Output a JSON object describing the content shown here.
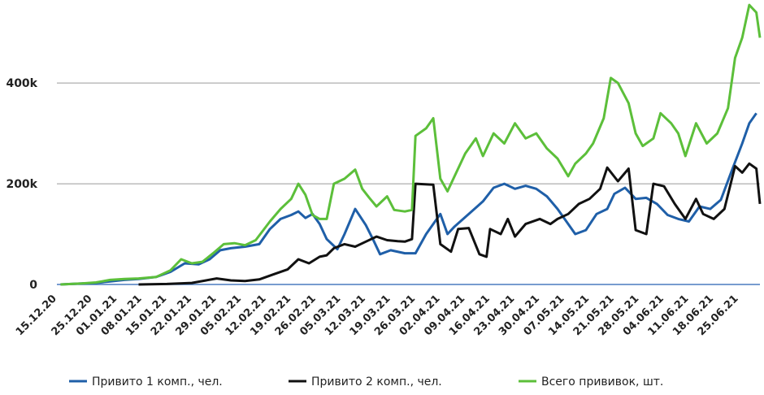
{
  "chart_data": {
    "type": "line",
    "title": "",
    "xlabel": "",
    "ylabel": "",
    "ylim": [
      0,
      560000
    ],
    "y_ticks": [
      0,
      200000,
      400000
    ],
    "y_tick_labels": [
      "0",
      "200k",
      "400k"
    ],
    "x_range": [
      "15.12.20",
      "01.07.21"
    ],
    "grid": "horizontal",
    "legend_position": "bottom",
    "categories": [
      "15.12.20",
      "25.12.20",
      "01.01.21",
      "08.01.21",
      "15.01.21",
      "22.01.21",
      "29.01.21",
      "05.02.21",
      "12.02.21",
      "19.02.21",
      "26.02.21",
      "05.03.21",
      "12.03.21",
      "19.03.21",
      "26.03.21",
      "02.04.21",
      "09.04.21",
      "16.04.21",
      "23.04.21",
      "30.04.21",
      "07.05.21",
      "14.05.21",
      "21.05.21",
      "28.05.21",
      "04.06.21",
      "11.06.21",
      "18.06.21",
      "25.06.21"
    ],
    "series": [
      {
        "name": "Привито 1 комп., чел.",
        "color": "#1f5fa8",
        "points": [
          [
            "16.12.20",
            0
          ],
          [
            "22.12.20",
            2000
          ],
          [
            "26.12.20",
            3000
          ],
          [
            "30.12.20",
            6000
          ],
          [
            "03.01.21",
            9000
          ],
          [
            "07.01.21",
            11000
          ],
          [
            "12.01.21",
            15000
          ],
          [
            "16.01.21",
            25000
          ],
          [
            "20.01.21",
            42000
          ],
          [
            "24.01.21",
            40000
          ],
          [
            "27.01.21",
            50000
          ],
          [
            "30.01.21",
            68000
          ],
          [
            "02.02.21",
            72000
          ],
          [
            "06.02.21",
            75000
          ],
          [
            "10.02.21",
            80000
          ],
          [
            "13.02.21",
            110000
          ],
          [
            "16.02.21",
            130000
          ],
          [
            "19.02.21",
            138000
          ],
          [
            "21.02.21",
            145000
          ],
          [
            "23.02.21",
            132000
          ],
          [
            "25.02.21",
            140000
          ],
          [
            "27.02.21",
            120000
          ],
          [
            "01.03.21",
            90000
          ],
          [
            "04.03.21",
            70000
          ],
          [
            "06.03.21",
            100000
          ],
          [
            "09.03.21",
            150000
          ],
          [
            "12.03.21",
            118000
          ],
          [
            "14.03.21",
            90000
          ],
          [
            "16.03.21",
            60000
          ],
          [
            "19.03.21",
            68000
          ],
          [
            "23.03.21",
            62000
          ],
          [
            "26.03.21",
            62000
          ],
          [
            "29.03.21",
            100000
          ],
          [
            "02.04.21",
            140000
          ],
          [
            "04.04.21",
            100000
          ],
          [
            "06.04.21",
            115000
          ],
          [
            "10.04.21",
            140000
          ],
          [
            "14.04.21",
            165000
          ],
          [
            "17.04.21",
            192000
          ],
          [
            "20.04.21",
            200000
          ],
          [
            "23.04.21",
            190000
          ],
          [
            "26.04.21",
            196000
          ],
          [
            "29.04.21",
            190000
          ],
          [
            "02.05.21",
            175000
          ],
          [
            "05.05.21",
            150000
          ],
          [
            "08.05.21",
            120000
          ],
          [
            "10.05.21",
            100000
          ],
          [
            "13.05.21",
            108000
          ],
          [
            "16.05.21",
            140000
          ],
          [
            "19.05.21",
            150000
          ],
          [
            "21.05.21",
            180000
          ],
          [
            "24.05.21",
            192000
          ],
          [
            "27.05.21",
            170000
          ],
          [
            "30.05.21",
            172000
          ],
          [
            "02.06.21",
            160000
          ],
          [
            "05.06.21",
            138000
          ],
          [
            "08.06.21",
            130000
          ],
          [
            "11.06.21",
            125000
          ],
          [
            "14.06.21",
            155000
          ],
          [
            "17.06.21",
            150000
          ],
          [
            "20.06.21",
            168000
          ],
          [
            "23.06.21",
            225000
          ],
          [
            "26.06.21",
            280000
          ],
          [
            "28.06.21",
            320000
          ],
          [
            "30.06.21",
            340000
          ]
        ]
      },
      {
        "name": "Привито 2 комп., чел.",
        "color": "#111111",
        "points": [
          [
            "07.01.21",
            0
          ],
          [
            "15.01.21",
            1000
          ],
          [
            "22.01.21",
            3000
          ],
          [
            "26.01.21",
            8000
          ],
          [
            "29.01.21",
            12000
          ],
          [
            "02.02.21",
            8000
          ],
          [
            "06.02.21",
            7000
          ],
          [
            "10.02.21",
            10000
          ],
          [
            "14.02.21",
            20000
          ],
          [
            "18.02.21",
            30000
          ],
          [
            "21.02.21",
            50000
          ],
          [
            "24.02.21",
            42000
          ],
          [
            "27.02.21",
            55000
          ],
          [
            "01.03.21",
            58000
          ],
          [
            "03.03.21",
            72000
          ],
          [
            "06.03.21",
            80000
          ],
          [
            "09.03.21",
            75000
          ],
          [
            "12.03.21",
            85000
          ],
          [
            "15.03.21",
            95000
          ],
          [
            "18.03.21",
            88000
          ],
          [
            "21.03.21",
            86000
          ],
          [
            "23.03.21",
            85000
          ],
          [
            "25.03.21",
            90000
          ],
          [
            "26.03.21",
            200000
          ],
          [
            "31.03.21",
            198000
          ],
          [
            "02.04.21",
            80000
          ],
          [
            "05.04.21",
            65000
          ],
          [
            "07.04.21",
            110000
          ],
          [
            "10.04.21",
            112000
          ],
          [
            "13.04.21",
            60000
          ],
          [
            "15.04.21",
            55000
          ],
          [
            "16.04.21",
            110000
          ],
          [
            "19.04.21",
            100000
          ],
          [
            "21.04.21",
            130000
          ],
          [
            "23.04.21",
            95000
          ],
          [
            "26.04.21",
            120000
          ],
          [
            "30.04.21",
            130000
          ],
          [
            "03.05.21",
            120000
          ],
          [
            "05.05.21",
            130000
          ],
          [
            "08.05.21",
            140000
          ],
          [
            "11.05.21",
            160000
          ],
          [
            "14.05.21",
            170000
          ],
          [
            "17.05.21",
            190000
          ],
          [
            "19.05.21",
            232000
          ],
          [
            "22.05.21",
            205000
          ],
          [
            "25.05.21",
            230000
          ],
          [
            "27.05.21",
            108000
          ],
          [
            "30.05.21",
            100000
          ],
          [
            "01.06.21",
            200000
          ],
          [
            "04.06.21",
            195000
          ],
          [
            "07.06.21",
            160000
          ],
          [
            "10.06.21",
            130000
          ],
          [
            "13.06.21",
            170000
          ],
          [
            "15.06.21",
            140000
          ],
          [
            "18.06.21",
            130000
          ],
          [
            "21.06.21",
            150000
          ],
          [
            "24.06.21",
            235000
          ],
          [
            "26.06.21",
            222000
          ],
          [
            "28.06.21",
            240000
          ],
          [
            "30.06.21",
            230000
          ],
          [
            "01.07.21",
            160000
          ]
        ]
      },
      {
        "name": "Всего прививок, шт.",
        "color": "#5cbf3a",
        "points": [
          [
            "16.12.20",
            0
          ],
          [
            "22.12.20",
            2000
          ],
          [
            "26.12.20",
            4000
          ],
          [
            "30.12.20",
            9000
          ],
          [
            "03.01.21",
            11000
          ],
          [
            "07.01.21",
            12000
          ],
          [
            "12.01.21",
            15000
          ],
          [
            "16.01.21",
            28000
          ],
          [
            "19.01.21",
            50000
          ],
          [
            "22.01.21",
            42000
          ],
          [
            "25.01.21",
            45000
          ],
          [
            "28.01.21",
            62000
          ],
          [
            "31.01.21",
            80000
          ],
          [
            "03.02.21",
            82000
          ],
          [
            "06.02.21",
            78000
          ],
          [
            "09.02.21",
            88000
          ],
          [
            "13.02.21",
            125000
          ],
          [
            "16.02.21",
            150000
          ],
          [
            "19.02.21",
            170000
          ],
          [
            "21.02.21",
            200000
          ],
          [
            "23.02.21",
            178000
          ],
          [
            "25.02.21",
            138000
          ],
          [
            "27.02.21",
            130000
          ],
          [
            "01.03.21",
            130000
          ],
          [
            "03.03.21",
            200000
          ],
          [
            "06.03.21",
            210000
          ],
          [
            "09.03.21",
            228000
          ],
          [
            "11.03.21",
            190000
          ],
          [
            "13.03.21",
            172000
          ],
          [
            "15.03.21",
            155000
          ],
          [
            "18.03.21",
            175000
          ],
          [
            "20.03.21",
            148000
          ],
          [
            "23.03.21",
            145000
          ],
          [
            "25.03.21",
            148000
          ],
          [
            "26.03.21",
            295000
          ],
          [
            "29.03.21",
            310000
          ],
          [
            "31.03.21",
            330000
          ],
          [
            "02.04.21",
            210000
          ],
          [
            "04.04.21",
            185000
          ],
          [
            "06.04.21",
            215000
          ],
          [
            "09.04.21",
            260000
          ],
          [
            "12.04.21",
            290000
          ],
          [
            "14.04.21",
            255000
          ],
          [
            "17.04.21",
            300000
          ],
          [
            "20.04.21",
            280000
          ],
          [
            "23.04.21",
            320000
          ],
          [
            "26.04.21",
            290000
          ],
          [
            "29.04.21",
            300000
          ],
          [
            "02.05.21",
            270000
          ],
          [
            "05.05.21",
            250000
          ],
          [
            "08.05.21",
            215000
          ],
          [
            "10.05.21",
            240000
          ],
          [
            "13.05.21",
            260000
          ],
          [
            "15.05.21",
            280000
          ],
          [
            "18.05.21",
            330000
          ],
          [
            "20.05.21",
            410000
          ],
          [
            "22.05.21",
            400000
          ],
          [
            "25.05.21",
            360000
          ],
          [
            "27.05.21",
            300000
          ],
          [
            "29.05.21",
            275000
          ],
          [
            "01.06.21",
            290000
          ],
          [
            "03.06.21",
            340000
          ],
          [
            "06.06.21",
            320000
          ],
          [
            "08.06.21",
            300000
          ],
          [
            "10.06.21",
            255000
          ],
          [
            "13.06.21",
            320000
          ],
          [
            "16.06.21",
            280000
          ],
          [
            "19.06.21",
            300000
          ],
          [
            "22.06.21",
            350000
          ],
          [
            "24.06.21",
            450000
          ],
          [
            "26.06.21",
            490000
          ],
          [
            "28.06.21",
            555000
          ],
          [
            "30.06.21",
            540000
          ],
          [
            "01.07.21",
            490000
          ]
        ]
      }
    ]
  }
}
